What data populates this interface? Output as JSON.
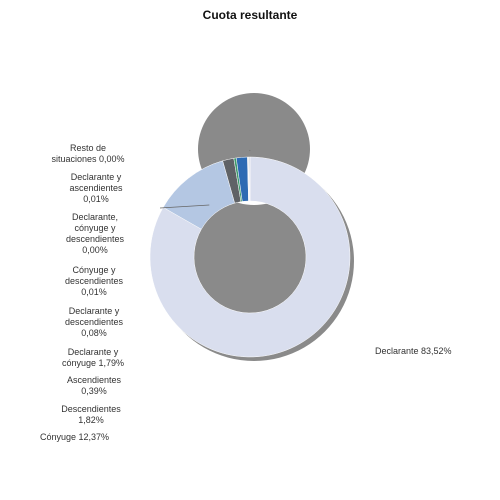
{
  "chart_data": {
    "type": "pie",
    "variant": "donut",
    "title": "Cuota resultante",
    "slices": [
      {
        "label": "Declarante",
        "value": 83.52,
        "display": "Declarante 83,52%",
        "color": "#d9deee"
      },
      {
        "label": "Cónyuge",
        "value": 12.37,
        "display": "Cónyuge 12,37%",
        "color": "#b4c7e3"
      },
      {
        "label": "Descendientes",
        "value": 1.82,
        "display": "Descendientes\n1,82%",
        "color": "#5f6266"
      },
      {
        "label": "Ascendientes",
        "value": 0.39,
        "display": "Ascendientes\n0,39%",
        "color": "#3e9a6c"
      },
      {
        "label": "Declarante y cónyuge",
        "value": 1.79,
        "display": "Declarante y\ncónyuge 1,79%",
        "color": "#2d6bb3"
      },
      {
        "label": "Declarante y descendientes",
        "value": 0.08,
        "display": "Declarante y\ndescendientes\n0,08%",
        "color": "#1b2f5c"
      },
      {
        "label": "Cónyuge y descendientes",
        "value": 0.01,
        "display": "Cónyuge y\ndescendientes\n0,01%",
        "color": "#7f8a99"
      },
      {
        "label": "Declarante, cónyuge y descendientes",
        "value": 0.0,
        "display": "Declarante,\ncónyuge y\ndescendientes\n0,00%",
        "color": "#a0a0a0"
      },
      {
        "label": "Declarante y ascendientes",
        "value": 0.01,
        "display": "Declarante y\nascendientes\n0,01%",
        "color": "#8cb8dd"
      },
      {
        "label": "Resto de situaciones",
        "value": 0.0,
        "display": "Resto de\nsituaciones 0,00%",
        "color": "#606060"
      }
    ],
    "legend": "none",
    "shadow": true
  }
}
